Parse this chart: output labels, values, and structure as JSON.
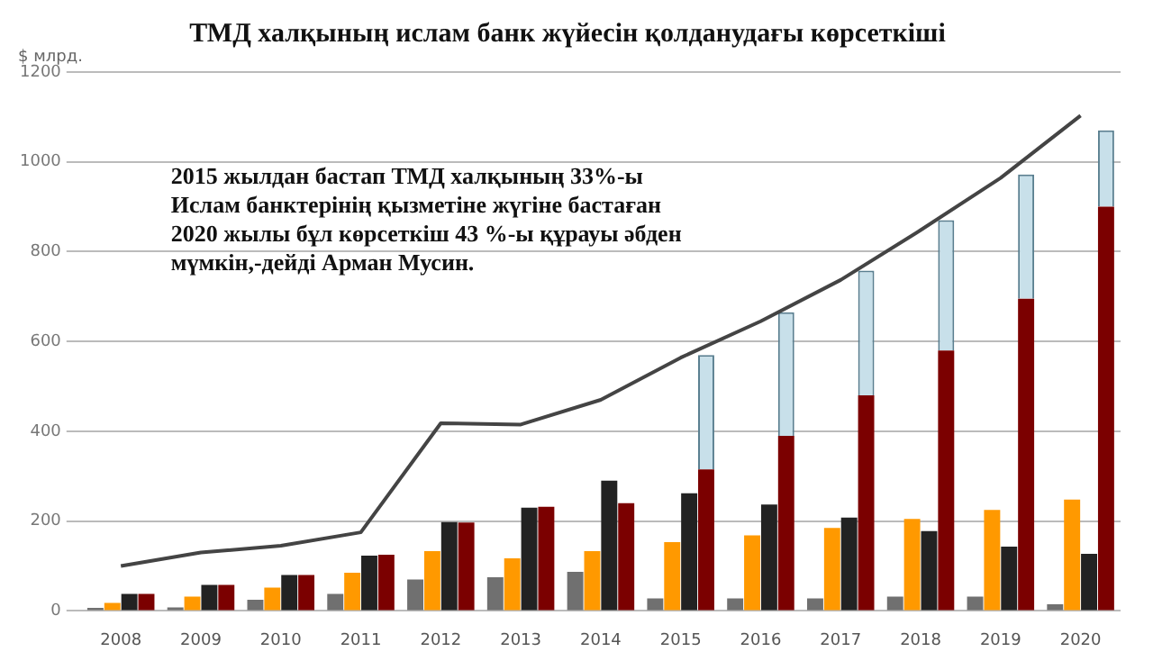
{
  "chart_data": {
    "type": "bar",
    "title": "ТМД халқының ислам банк жүйесін қолданудағы көрсеткіші",
    "ylabel": "$ млрд.",
    "categories": [
      "2008",
      "2009",
      "2010",
      "2011",
      "2012",
      "2013",
      "2014",
      "2015",
      "2016",
      "2017",
      "2018",
      "2019",
      "2020"
    ],
    "series": [
      {
        "color": "#707070",
        "values": [
          7,
          8,
          25,
          38,
          70,
          75,
          87,
          28,
          28,
          28,
          32,
          32,
          15
        ]
      },
      {
        "color": "#ff9900",
        "values": [
          18,
          32,
          52,
          85,
          133,
          117,
          133,
          153,
          168,
          185,
          205,
          225,
          248
        ]
      },
      {
        "color": "#222222",
        "values": [
          38,
          58,
          80,
          123,
          198,
          230,
          290,
          262,
          237,
          208,
          178,
          143,
          127
        ]
      },
      {
        "color": "#7b0000",
        "values": [
          38,
          58,
          80,
          125,
          197,
          232,
          240,
          315,
          390,
          480,
          580,
          695,
          900
        ]
      },
      {
        "color": "#c8e0ea",
        "base": [
          null,
          null,
          null,
          null,
          null,
          null,
          null,
          315,
          390,
          480,
          580,
          695,
          900
        ],
        "values": [
          null,
          null,
          null,
          null,
          null,
          null,
          null,
          255,
          275,
          278,
          290,
          277,
          170
        ]
      },
      {
        "type": "line",
        "color": "#444444",
        "values": [
          100,
          130,
          145,
          175,
          418,
          415,
          470,
          564,
          645,
          737,
          848,
          964,
          1103
        ]
      }
    ],
    "ylim": [
      0,
      1200
    ],
    "yticks": [
      0,
      200,
      400,
      600,
      800,
      1000,
      1200
    ],
    "grid": "y",
    "legend": false,
    "annotations": [
      "2015 жылдан бастап ТМД халқының 33%-ы Ислам банктерінің қызметіне жүгіне бастаған 2020 жылы бұл көрсеткіш 43 %-ы құрауы әбден мүмкін,-дейді Арман Мусин."
    ]
  }
}
